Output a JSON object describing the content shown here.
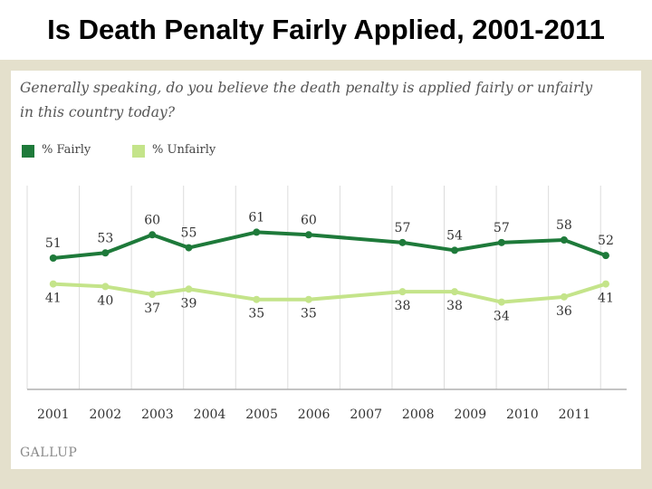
{
  "title": "Is Death Penalty Fairly Applied, 2001-2011",
  "question_line1": "Generally speaking, do you believe the death penalty is applied fairly or unfairly",
  "question_line2": "in this country today?",
  "source": "GALLUP",
  "colors": {
    "fairly": "#1e7a3a",
    "unfairly": "#c4e48a",
    "gridline": "#dcdcdc",
    "frame": "#e4e0cc"
  },
  "chart_data": {
    "type": "line",
    "title": "",
    "xlabel": "",
    "ylabel": "",
    "ylim": [
      30,
      65
    ],
    "grid": true,
    "legend_position": "top-left",
    "x_ticks": [
      "2001",
      "2002",
      "2003",
      "2004",
      "2005",
      "2006",
      "2007",
      "2008",
      "2009",
      "2010",
      "2011"
    ],
    "x": [
      2001.0,
      2002.0,
      2002.9,
      2003.6,
      2004.9,
      2005.9,
      2007.7,
      2008.7,
      2009.6,
      2010.8,
      2011.6
    ],
    "series": [
      {
        "name": "% Fairly",
        "color": "#1e7a3a",
        "values": [
          51,
          53,
          60,
          55,
          61,
          60,
          57,
          54,
          57,
          58,
          52
        ]
      },
      {
        "name": "% Unfairly",
        "color": "#c4e48a",
        "values": [
          41,
          40,
          37,
          39,
          35,
          35,
          38,
          38,
          34,
          36,
          41
        ]
      }
    ]
  }
}
